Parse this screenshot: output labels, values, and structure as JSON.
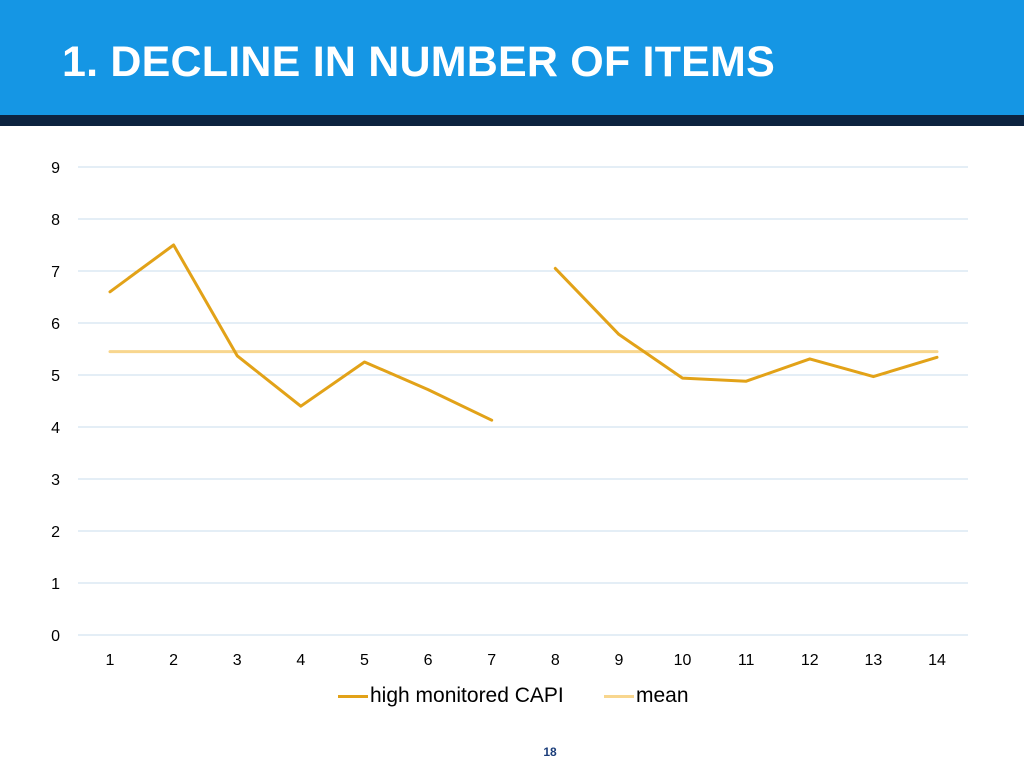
{
  "slide": {
    "title": "1. DECLINE IN NUMBER OF ITEMS",
    "page_number": "18",
    "colors": {
      "header_background": "#1596e4",
      "header_bar": "#0d2340",
      "gridline": "#c9dcec"
    }
  },
  "chart_data": {
    "type": "line",
    "title": "",
    "xlabel": "",
    "ylabel": "",
    "categories": [
      "1",
      "2",
      "3",
      "4",
      "5",
      "6",
      "7",
      "8",
      "9",
      "10",
      "11",
      "12",
      "13",
      "14"
    ],
    "yticks": [
      "0",
      "1",
      "2",
      "3",
      "4",
      "5",
      "6",
      "7",
      "8",
      "9"
    ],
    "ylim": [
      0,
      9
    ],
    "grid": true,
    "legend_position": "bottom",
    "series": [
      {
        "name": "high monitored CAPI",
        "color": "#e2a218",
        "values": [
          6.6,
          7.5,
          5.37,
          4.4,
          5.25,
          4.72,
          4.13,
          null,
          5.78,
          4.94,
          4.88,
          5.31,
          4.97,
          5.34
        ],
        "note_segment_start": 7.05
      },
      {
        "name": "mean",
        "color": "#f8d68e",
        "values": [
          5.45,
          5.45,
          5.45,
          5.45,
          5.45,
          5.45,
          5.45,
          5.45,
          5.45,
          5.45,
          5.45,
          5.45,
          5.45,
          5.45
        ]
      }
    ]
  }
}
